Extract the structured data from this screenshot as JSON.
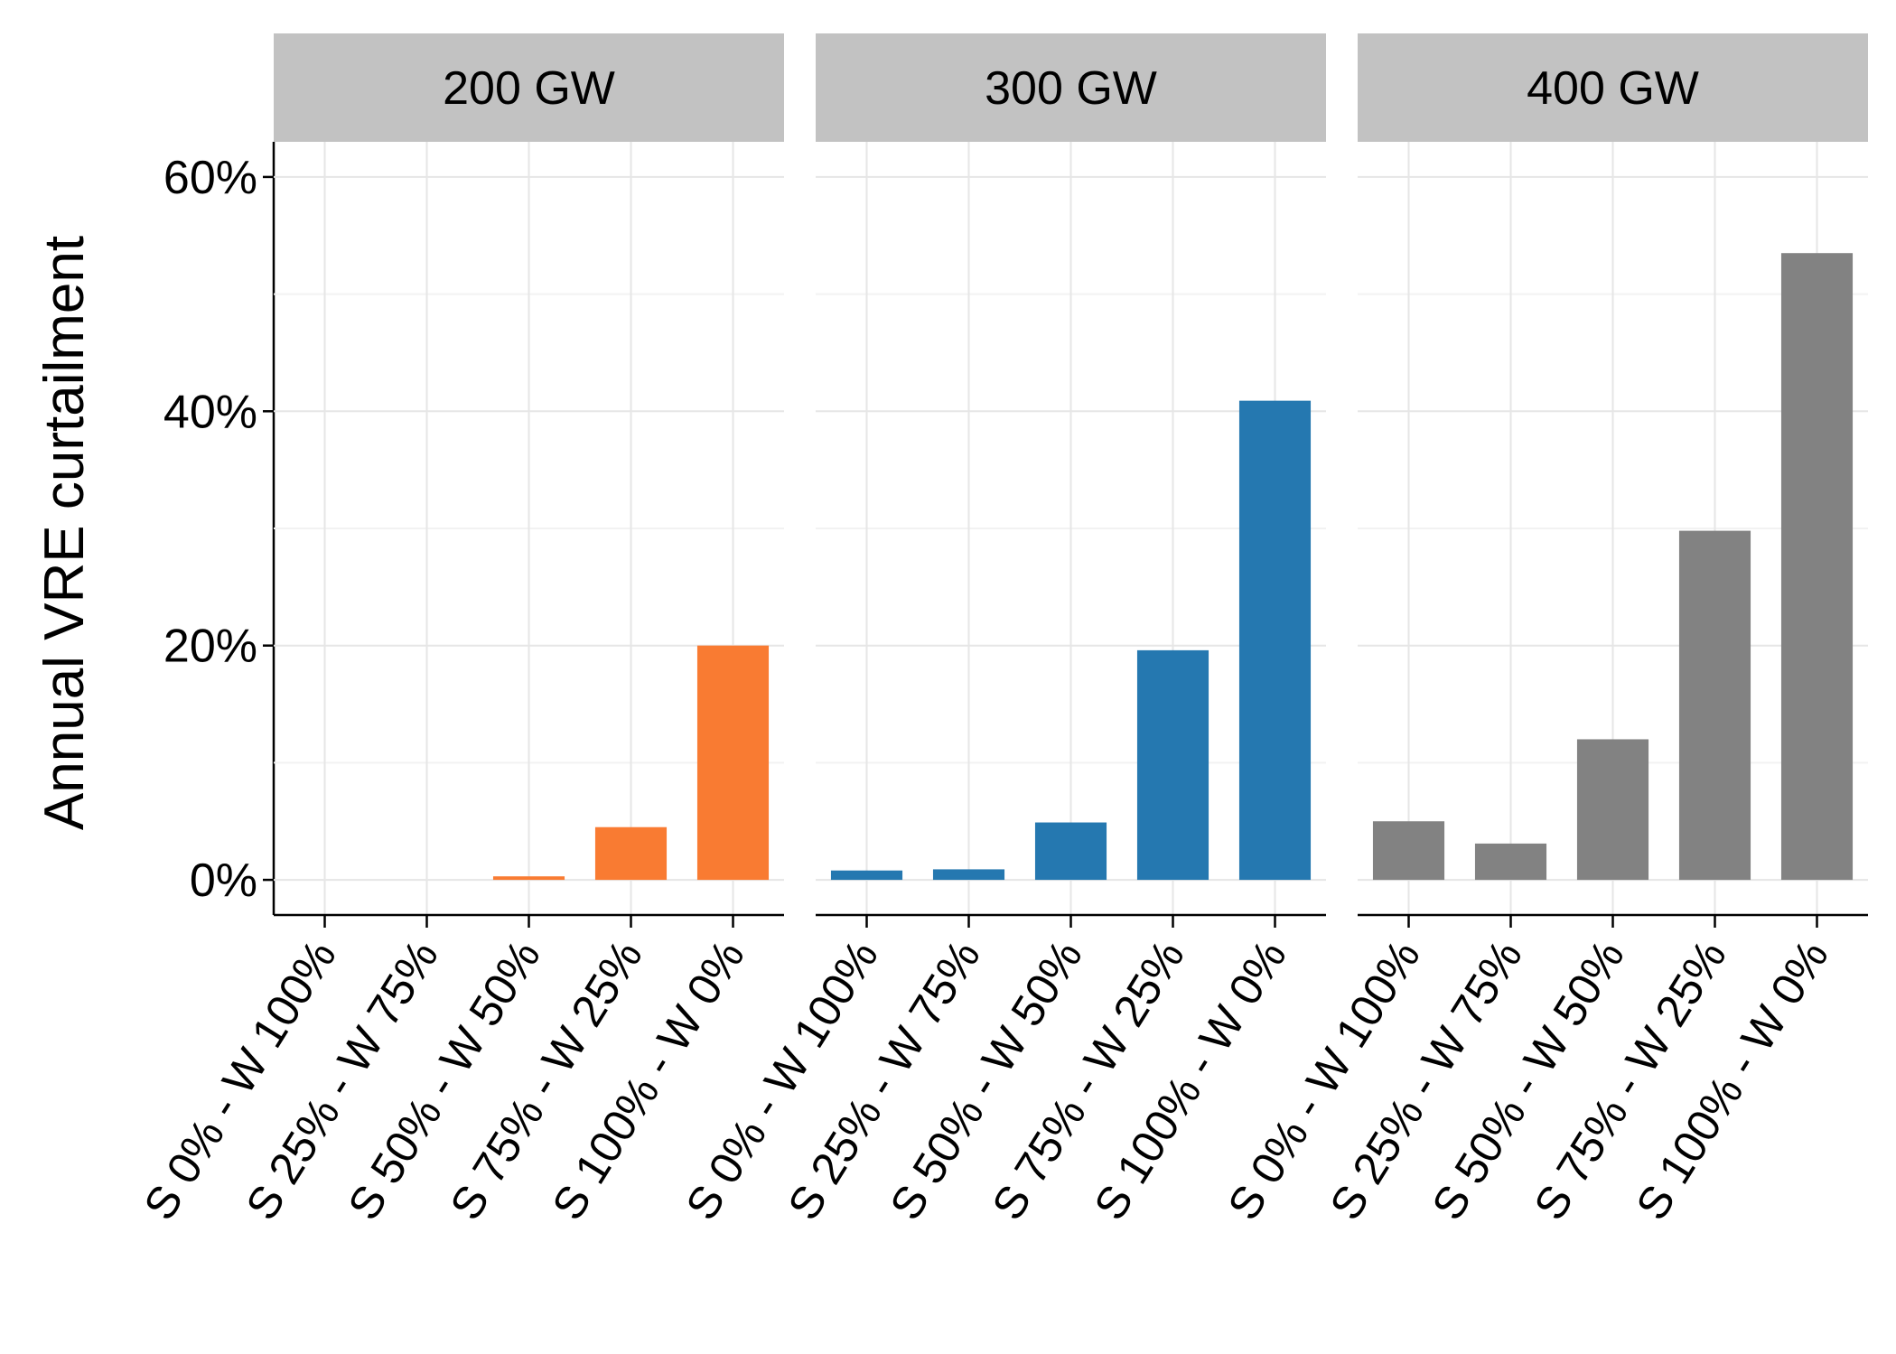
{
  "chart_data": {
    "type": "bar",
    "facet_by": "capacity",
    "ylabel": "Annual VRE curtailment",
    "xlabel": "",
    "ylim": [
      -3,
      60
    ],
    "yticks": [
      0,
      20,
      40,
      60
    ],
    "ytick_labels": [
      "0%",
      "20%",
      "40%",
      "60%"
    ],
    "y_minor_ticks": [
      10,
      30,
      50
    ],
    "grid": true,
    "categories": [
      "S 0% - W 100%",
      "S 25% - W 75%",
      "S 50% - W 50%",
      "S 75% - W 25%",
      "S 100% - W 0%"
    ],
    "panels": [
      {
        "name": "200 GW",
        "color": "#F97B32",
        "values": [
          0.0,
          0.0,
          0.3,
          4.5,
          20.0
        ]
      },
      {
        "name": "300 GW",
        "color": "#2578B0",
        "values": [
          0.8,
          0.9,
          4.9,
          19.6,
          40.9
        ]
      },
      {
        "name": "400 GW",
        "color": "#828282",
        "values": [
          5.0,
          3.1,
          12.0,
          29.8,
          53.5
        ]
      }
    ]
  },
  "colors": {
    "strip_background": "#C2C2C2",
    "grid": "#E6E6E6",
    "axis": "#000000"
  }
}
